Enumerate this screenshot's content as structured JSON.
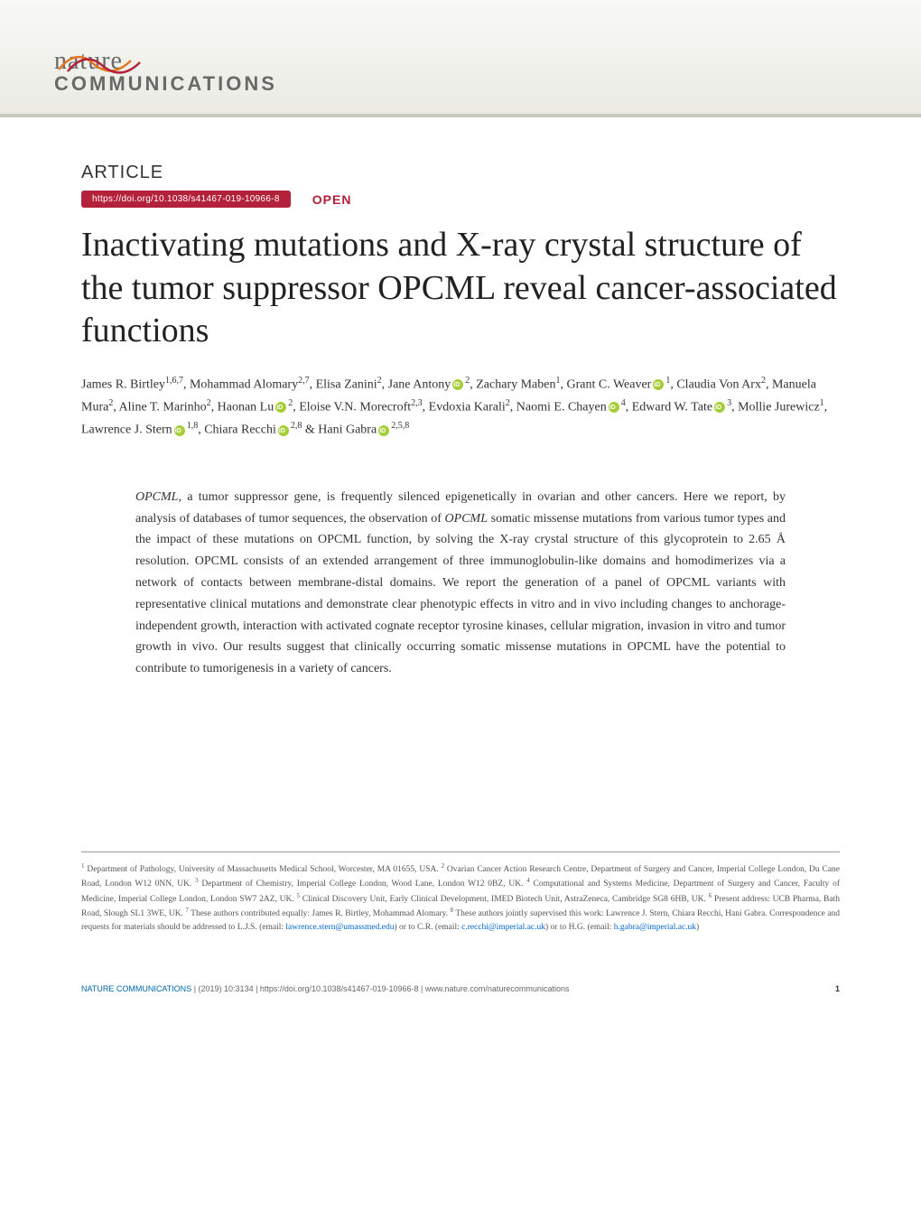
{
  "header": {
    "journal_name": "nature",
    "journal_sub": "COMMUNICATIONS",
    "wave_colors": [
      "#e37822",
      "#b4213a",
      "#4a8a3f"
    ]
  },
  "article": {
    "label": "ARTICLE",
    "doi": "https://doi.org/10.1038/s41467-019-10966-8",
    "open_label": "OPEN",
    "title": "Inactivating mutations and X-ray crystal structure of the tumor suppressor OPCML reveal cancer-associated functions"
  },
  "authors": [
    {
      "name": "James R. Birtley",
      "affil": "1,6,7",
      "orcid": false
    },
    {
      "name": "Mohammad Alomary",
      "affil": "2,7",
      "orcid": false
    },
    {
      "name": "Elisa Zanini",
      "affil": "2",
      "orcid": false
    },
    {
      "name": "Jane Antony",
      "affil": "2",
      "orcid": true
    },
    {
      "name": "Zachary Maben",
      "affil": "1",
      "orcid": false
    },
    {
      "name": "Grant C. Weaver",
      "affil": "1",
      "orcid": true
    },
    {
      "name": "Claudia Von Arx",
      "affil": "2",
      "orcid": false
    },
    {
      "name": "Manuela Mura",
      "affil": "2",
      "orcid": false
    },
    {
      "name": "Aline T. Marinho",
      "affil": "2",
      "orcid": false
    },
    {
      "name": "Haonan Lu",
      "affil": "2",
      "orcid": true
    },
    {
      "name": "Eloise V.N. Morecroft",
      "affil": "2,3",
      "orcid": false
    },
    {
      "name": "Evdoxia Karali",
      "affil": "2",
      "orcid": false
    },
    {
      "name": "Naomi E. Chayen",
      "affil": "4",
      "orcid": true
    },
    {
      "name": "Edward W. Tate",
      "affil": "3",
      "orcid": true
    },
    {
      "name": "Mollie Jurewicz",
      "affil": "1",
      "orcid": false
    },
    {
      "name": "Lawrence J. Stern",
      "affil": "1,8",
      "orcid": true
    },
    {
      "name": "Chiara Recchi",
      "affil": "2,8",
      "orcid": true
    },
    {
      "name": "Hani Gabra",
      "affil": "2,5,8",
      "orcid": true
    }
  ],
  "abstract": {
    "text": "OPCML, a tumor suppressor gene, is frequently silenced epigenetically in ovarian and other cancers. Here we report, by analysis of databases of tumor sequences, the observation of OPCML somatic missense mutations from various tumor types and the impact of these mutations on OPCML function, by solving the X-ray crystal structure of this glycoprotein to 2.65 Å resolution. OPCML consists of an extended arrangement of three immunoglobulin-like domains and homodimerizes via a network of contacts between membrane-distal domains. We report the generation of a panel of OPCML variants with representative clinical mutations and demonstrate clear phenotypic effects in vitro and in vivo including changes to anchorage-independent growth, interaction with activated cognate receptor tyrosine kinases, cellular migration, invasion in vitro and tumor growth in vivo. Our results suggest that clinically occurring somatic missense mutations in OPCML have the potential to contribute to tumorigenesis in a variety of cancers."
  },
  "affiliations": {
    "text": "Department of Pathology, University of Massachusetts Medical School, Worcester, MA 01655, USA. |Ovarian Cancer Action Research Centre, Department of Surgery and Cancer, Imperial College London, Du Cane Road, London W12 0NN, UK. |Department of Chemistry, Imperial College London, Wood Lane, London W12 0BZ, UK. |Computational and Systems Medicine, Department of Surgery and Cancer, Faculty of Medicine, Imperial College London, London SW7 2AZ, UK. |Clinical Discovery Unit, Early Clinical Development, IMED Biotech Unit, AstraZeneca, Cambridge SG8 6HB, UK. |Present address: UCB Pharma, Bath Road, Slough SL1 3WE, UK. |These authors contributed equally: James R. Birtley, Mohammad Alomary. |These authors jointly supervised this work: Lawrence J. Stern, Chiara Recchi, Hani Gabra. Correspondence and requests for materials should be addressed to L.J.S. (email: ",
    "email1": "lawrence.stern@umassmed.edu",
    "mid1": ") or to C.R. (email: ",
    "email2": "c.recchi@imperial.ac.uk",
    "mid2": ") or to H.G. (email: ",
    "email3": "h.gabra@imperial.ac.uk",
    "end": ")"
  },
  "footer": {
    "journal": "NATURE COMMUNICATIONS",
    "citation": "| (2019) 10:3134 | https://doi.org/10.1038/s41467-019-10966-8 | www.nature.com/naturecommunications",
    "page": "1"
  },
  "colors": {
    "brand_red": "#b4213a",
    "link_blue": "#0066cc",
    "header_bg_top": "#f8f8f6",
    "header_bg_bottom": "#ebebe4",
    "header_border": "#c8c8be",
    "logo_gray": "#696a67"
  }
}
